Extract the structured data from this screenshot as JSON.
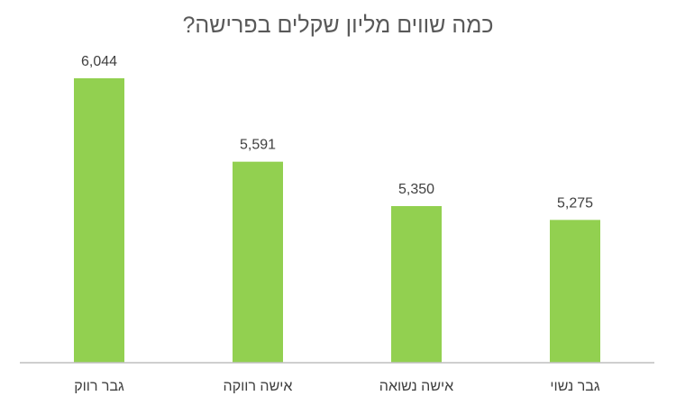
{
  "chart_data": {
    "type": "bar",
    "title": "כמה שווים מליון שקלים בפרישה?",
    "categories": [
      "גבר רווק",
      "אישה רווקה",
      "אישה נשואה",
      "גבר נשוי"
    ],
    "values": [
      6044,
      5591,
      5350,
      5275
    ],
    "value_labels": [
      "6,044",
      "5,591",
      "5,350",
      "5,275"
    ],
    "ylim": [
      4500,
      6200
    ],
    "bar_color": "#92d050",
    "axis_color": "#bfbfbf",
    "grid": false,
    "legend": "none"
  }
}
